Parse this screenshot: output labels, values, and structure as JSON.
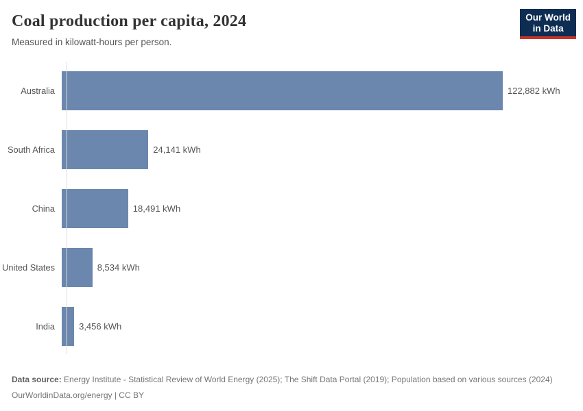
{
  "header": {
    "title": "Coal production per capita, 2024",
    "subtitle": "Measured in kilowatt-hours per person.",
    "logo": {
      "line1": "Our World",
      "line2": "in Data"
    }
  },
  "chart_data": {
    "type": "bar",
    "orientation": "horizontal",
    "title": "Coal production per capita, 2024",
    "subtitle": "Measured in kilowatt-hours per person.",
    "unit": "kWh",
    "categories": [
      "Australia",
      "South Africa",
      "China",
      "United States",
      "India"
    ],
    "values": [
      122882,
      24141,
      18491,
      8534,
      3456
    ],
    "value_labels": [
      "122,882 kWh",
      "24,141 kWh",
      "18,491 kWh",
      "8,534 kWh",
      "3,456 kWh"
    ],
    "xlim": [
      0,
      122882
    ],
    "grid": false,
    "legend": "none",
    "bar_color": "#6c87ad",
    "axis_color": "#dddddd"
  },
  "footer": {
    "source_label": "Data source:",
    "source_text": " Energy Institute - Statistical Review of World Energy (2025); The Shift Data Portal (2019); Population based on various sources (2024)",
    "link_text": "OurWorldinData.org/energy | CC BY"
  },
  "colors": {
    "bar": "#6c87ad",
    "axis": "#dddddd",
    "logo_navy": "#0d2d53",
    "logo_red": "#cc3227",
    "title_text": "#333333",
    "body_text": "#555555",
    "footer_text": "#757575"
  }
}
